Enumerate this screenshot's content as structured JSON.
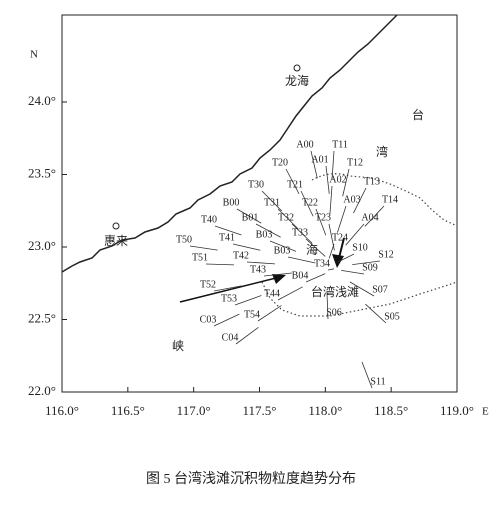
{
  "map": {
    "xlim": [
      116.0,
      119.0
    ],
    "ylim": [
      22.0,
      24.6
    ],
    "xticks": [
      {
        "value": 116.0,
        "label": "116.0°"
      },
      {
        "value": 116.5,
        "label": "116.5°"
      },
      {
        "value": 117.0,
        "label": "117.0°"
      },
      {
        "value": 117.5,
        "label": "117.5°"
      },
      {
        "value": 118.0,
        "label": "118.0°"
      },
      {
        "value": 118.5,
        "label": "118.5°"
      },
      {
        "value": 119.0,
        "label": "119.0°"
      }
    ],
    "yticks": [
      {
        "value": 22.0,
        "label": "22.0°"
      },
      {
        "value": 22.5,
        "label": "22.5°"
      },
      {
        "value": 23.0,
        "label": "23.0°"
      },
      {
        "value": 23.5,
        "label": "23.5°"
      },
      {
        "value": 24.0,
        "label": "24.0°"
      }
    ],
    "north_label": "N",
    "east_label": "E",
    "places": [
      "龙海",
      "台",
      "湾",
      "惠来",
      "海",
      "峡",
      "台湾浅滩"
    ],
    "stations": [
      "A00",
      "A01",
      "A02",
      "A03",
      "A04",
      "T11",
      "T12",
      "T13",
      "T14",
      "T20",
      "T21",
      "T22",
      "T23",
      "T24",
      "T30",
      "T31",
      "T32",
      "T33",
      "T34",
      "B00",
      "B01",
      "B03",
      "B03",
      "B04",
      "T40",
      "T41",
      "T42",
      "T43",
      "T44",
      "T50",
      "T51",
      "T52",
      "T53",
      "T54",
      "C03",
      "C04",
      "S10",
      "S12",
      "S09",
      "S07",
      "S06",
      "S05",
      "S11"
    ],
    "caption": "图 5   台湾浅滩沉积物粒度趋势分布"
  }
}
